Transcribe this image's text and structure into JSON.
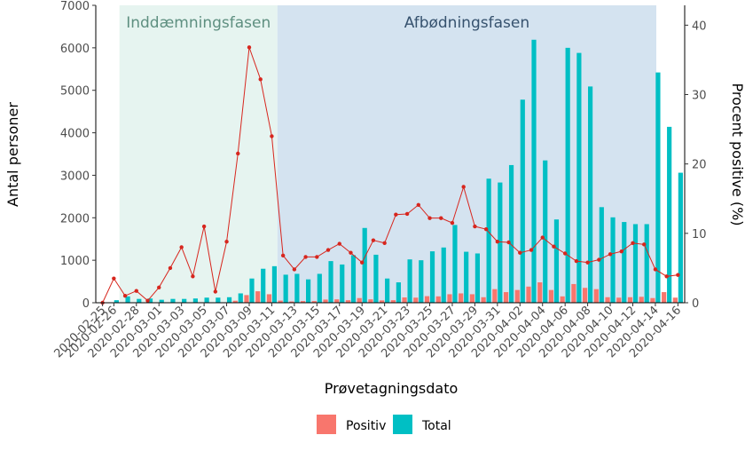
{
  "chart_data": {
    "type": "bar+line",
    "xlabel": "Prøvetagningsdato",
    "ylabel_left": "Antal personer",
    "ylabel_right": "Procent positive (%)",
    "ylim_left": [
      0,
      7000
    ],
    "ylim_right": [
      0,
      42.86
    ],
    "yticks_left": [
      "0",
      "1000",
      "2000",
      "3000",
      "4000",
      "5000",
      "6000",
      "7000"
    ],
    "yticks_right": [
      "0",
      "10",
      "20",
      "30",
      "40"
    ],
    "phases": [
      {
        "label": "Inddæmningsfasen",
        "start": "2020-02-27",
        "end": "2020-03-11",
        "color": "#e6f4f0",
        "text_color": "#5e8f80"
      },
      {
        "label": "Afbødningsfasen",
        "start": "2020-03-12",
        "end": "2020-04-17",
        "color": "#d4e3f0",
        "text_color": "#36526e"
      }
    ],
    "dates": [
      "2020-02-25",
      "2020-02-26",
      "2020-02-27",
      "2020-02-28",
      "2020-02-29",
      "2020-03-01",
      "2020-03-02",
      "2020-03-03",
      "2020-03-04",
      "2020-03-05",
      "2020-03-06",
      "2020-03-07",
      "2020-03-08",
      "2020-03-09",
      "2020-03-10",
      "2020-03-11",
      "2020-03-12",
      "2020-03-13",
      "2020-03-14",
      "2020-03-15",
      "2020-03-16",
      "2020-03-17",
      "2020-03-18",
      "2020-03-19",
      "2020-03-20",
      "2020-03-21",
      "2020-03-22",
      "2020-03-23",
      "2020-03-24",
      "2020-03-25",
      "2020-03-26",
      "2020-03-27",
      "2020-03-28",
      "2020-03-29",
      "2020-03-30",
      "2020-03-31",
      "2020-04-01",
      "2020-04-02",
      "2020-04-03",
      "2020-04-04",
      "2020-04-05",
      "2020-04-06",
      "2020-04-07",
      "2020-04-08",
      "2020-04-09",
      "2020-04-10",
      "2020-04-11",
      "2020-04-12",
      "2020-04-13",
      "2020-04-14",
      "2020-04-15",
      "2020-04-16"
    ],
    "tick_labels": [
      "2020-02-25",
      "2020-02-26",
      "2020-02-28",
      "2020-03-01",
      "2020-03-03",
      "2020-03-05",
      "2020-03-07",
      "2020-03-09",
      "2020-03-11",
      "2020-03-13",
      "2020-03-15",
      "2020-03-17",
      "2020-03-19",
      "2020-03-21",
      "2020-03-23",
      "2020-03-25",
      "2020-03-27",
      "2020-03-29",
      "2020-03-31",
      "2020-04-02",
      "2020-04-04",
      "2020-04-06",
      "2020-04-08",
      "2020-04-10",
      "2020-04-12",
      "2020-04-14",
      "2020-04-16"
    ],
    "series": [
      {
        "name": "Positiv",
        "type": "bar",
        "axis": "left",
        "color": "#f8766d",
        "values": [
          0,
          2,
          2,
          2,
          1,
          1,
          4,
          4,
          5,
          11,
          3,
          11,
          48,
          180,
          270,
          200,
          50,
          30,
          40,
          40,
          75,
          80,
          60,
          110,
          80,
          55,
          60,
          125,
          120,
          155,
          150,
          200,
          220,
          200,
          130,
          320,
          250,
          300,
          380,
          480,
          300,
          150,
          440,
          350,
          320,
          130,
          120,
          130,
          140,
          110,
          250,
          120
        ]
      },
      {
        "name": "Total",
        "type": "bar",
        "axis": "left",
        "color": "#00bfc4",
        "values": [
          5,
          60,
          150,
          90,
          100,
          70,
          90,
          90,
          100,
          120,
          120,
          130,
          220,
          570,
          800,
          860,
          660,
          680,
          550,
          680,
          980,
          900,
          1120,
          1760,
          1130,
          570,
          480,
          1020,
          1000,
          1210,
          1300,
          1830,
          1200,
          1160,
          2920,
          2830,
          3240,
          4780,
          6190,
          3350,
          1960,
          6000,
          5880,
          5090,
          2250,
          2010,
          1900,
          1850,
          1850,
          5420,
          4140,
          3060
        ]
      },
      {
        "name": "Procent positive",
        "type": "line",
        "axis": "right",
        "color": "#d7261e",
        "values": [
          0,
          3.5,
          1,
          1.7,
          0.3,
          2.2,
          5,
          8,
          3.8,
          11,
          1.6,
          8.8,
          21.5,
          36.8,
          32.2,
          24,
          6.8,
          4.8,
          6.6,
          6.6,
          7.6,
          8.5,
          7.2,
          5.8,
          9,
          8.6,
          12.7,
          12.8,
          14.1,
          12.2,
          12.2,
          11.5,
          16.7,
          11,
          10.6,
          8.8,
          8.7,
          7.2,
          7.6,
          9.4,
          8.1,
          7.1,
          6,
          5.8,
          6.2,
          7,
          7.4,
          8.6,
          8.4,
          4.8,
          3.8,
          4
        ]
      }
    ],
    "legend": {
      "position": "bottom",
      "items": [
        "Positiv",
        "Total"
      ]
    },
    "grid": false
  }
}
